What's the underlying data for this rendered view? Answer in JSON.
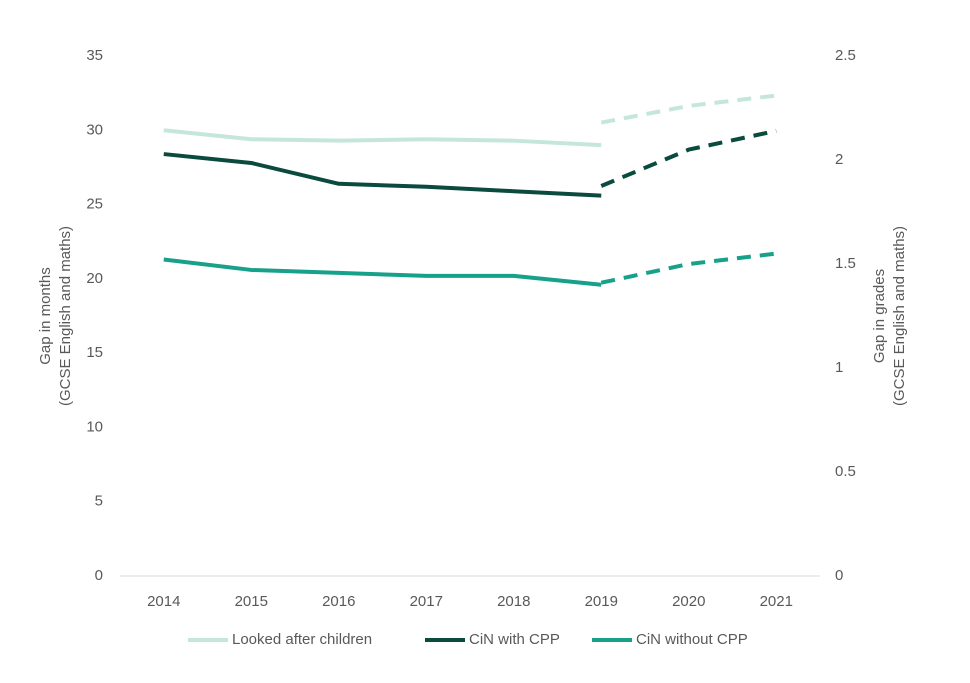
{
  "chart_data": {
    "type": "line",
    "categories": [
      "2014",
      "2015",
      "2016",
      "2017",
      "2018",
      "2019",
      "2020",
      "2021"
    ],
    "y_label": [
      "Gap in months",
      "(GCSE English and maths)"
    ],
    "y2_label": [
      "Gap in grades",
      "(GCSE English and maths)"
    ],
    "ylim": [
      0,
      35
    ],
    "yticks": [
      0,
      5,
      10,
      15,
      20,
      25,
      30,
      35
    ],
    "y2lim": [
      0,
      2.5
    ],
    "y2ticks": [
      0,
      0.5,
      1,
      1.5,
      2,
      2.5
    ],
    "legend": "bottom",
    "series": [
      {
        "name": "Looked after children",
        "color": "#c5e6dd",
        "values": [
          30.0,
          29.4,
          29.3,
          29.4,
          29.3,
          29.0,
          null,
          null
        ]
      },
      {
        "name": "CiN with CPP",
        "color": "#0b4a3e",
        "values": [
          28.4,
          27.8,
          26.4,
          26.2,
          25.9,
          25.6,
          null,
          null
        ]
      },
      {
        "name": "CiN without CPP",
        "color": "#17a08a",
        "values": [
          21.3,
          20.6,
          20.4,
          20.2,
          20.2,
          19.6,
          null,
          null
        ]
      },
      {
        "color": "#c5e6dd",
        "axis": "y2",
        "dashed": true,
        "values": [
          null,
          null,
          null,
          null,
          null,
          2.18,
          2.26,
          2.31
        ]
      },
      {
        "color": "#0b4a3e",
        "axis": "y2",
        "dashed": true,
        "values": [
          null,
          null,
          null,
          null,
          null,
          1.875,
          2.05,
          2.14
        ]
      },
      {
        "color": "#17a08a",
        "axis": "y2",
        "dashed": true,
        "values": [
          null,
          null,
          null,
          null,
          null,
          1.41,
          1.5,
          1.55
        ]
      }
    ]
  }
}
